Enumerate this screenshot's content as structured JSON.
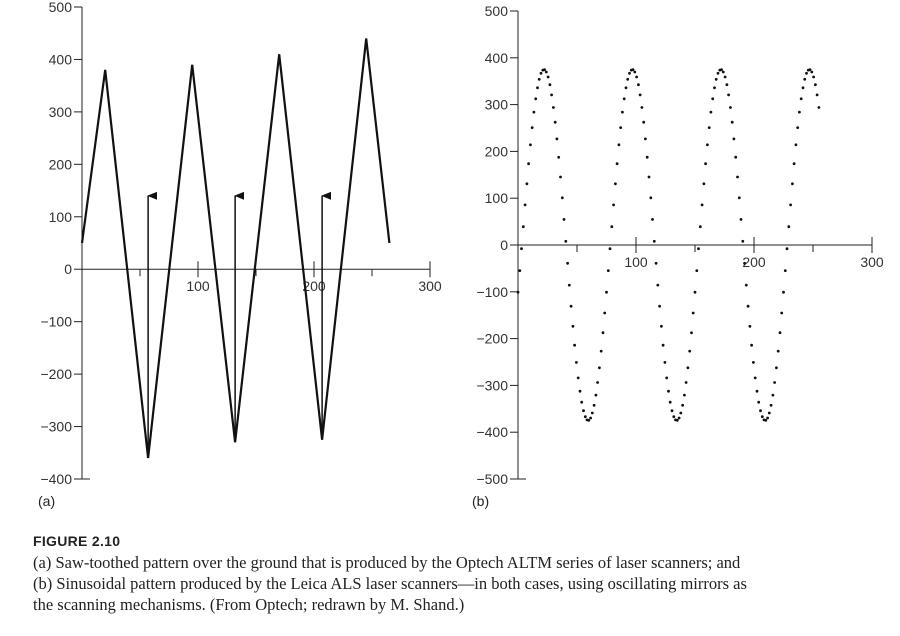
{
  "chart_data": [
    {
      "type": "line",
      "panel": "(a)",
      "title": "",
      "xlabel": "",
      "ylabel": "",
      "xlim": [
        0,
        300
      ],
      "ylim": [
        -400,
        500
      ],
      "x_ticks": [
        100,
        200,
        300
      ],
      "y_ticks": [
        500,
        400,
        300,
        200,
        100,
        0,
        -100,
        -200,
        -300,
        -400
      ],
      "series": [
        {
          "x": [
            0,
            20,
            57,
            95,
            132,
            170,
            207,
            245,
            265
          ],
          "y": [
            50,
            380,
            -360,
            390,
            -330,
            410,
            -325,
            440,
            50
          ]
        }
      ],
      "arrows": [
        {
          "x": 57,
          "y_from": -360,
          "y_to": 140
        },
        {
          "x": 132,
          "y_from": -330,
          "y_to": 140
        },
        {
          "x": 207,
          "y_from": -325,
          "y_to": 140
        }
      ]
    },
    {
      "type": "scatter",
      "panel": "(b)",
      "title": "",
      "xlabel": "",
      "ylabel": "",
      "xlim": [
        0,
        300
      ],
      "ylim": [
        -500,
        500
      ],
      "x_ticks": [
        100,
        200,
        300
      ],
      "y_ticks": [
        500,
        400,
        300,
        200,
        100,
        0,
        -100,
        -200,
        -300,
        -400,
        -500
      ],
      "series": [
        {
          "function": "sine",
          "amplitude": 375,
          "period": 75,
          "phase_peak_x": 22,
          "x_start": 0,
          "x_end": 255,
          "marker": "dot"
        }
      ]
    }
  ],
  "caption": {
    "figure_label": "FIGURE 2.10",
    "lines": [
      "(a) Saw-toothed pattern over the ground that is produced by the Optech ALTM series of laser scanners; and",
      "(b) Sinusoidal pattern produced by the Leica ALS laser scanners—in both cases, using oscillating mirrors as",
      "the scanning mechanisms. (From Optech; redrawn by M. Shand.)"
    ]
  }
}
